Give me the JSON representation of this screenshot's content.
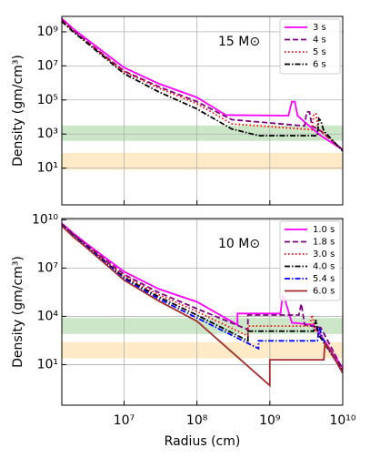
{
  "chart_data": [
    {
      "type": "line",
      "annotation": "15 M⊙",
      "ylabel": "Density (gm/cm³)",
      "log_x": true,
      "log_y": true,
      "grid": true,
      "legend": "upper right",
      "xlim": [
        1400000.0,
        10000000000.0
      ],
      "ylim": [
        0.07,
        8000000000.0
      ],
      "yticks": [
        {
          "value": 10,
          "label": "10¹"
        },
        {
          "value": 1000,
          "label": "10³"
        },
        {
          "value": 100000,
          "label": "10⁵"
        },
        {
          "value": 10000000,
          "label": "10⁷"
        },
        {
          "value": 1000000000,
          "label": "10⁹"
        }
      ],
      "bands": [
        {
          "range": [
            400,
            3200
          ],
          "color": "#b9dfb4"
        },
        {
          "range": [
            8,
            80
          ],
          "color": "#fde3b4"
        }
      ],
      "series": [
        {
          "name": "3 s",
          "color": "#ff00ff",
          "dash": "solid",
          "x": [
            1400000.0,
            2000000.0,
            3000000.0,
            10000000.0,
            30000000.0,
            100000000.0,
            250000000.0,
            1800000000.0,
            2000000000.0,
            2200000000.0,
            2400000000.0,
            3000000000.0,
            5000000000.0,
            10000000000.0
          ],
          "values": [
            6000000000.0,
            1500000000.0,
            400000000.0,
            8000000.0,
            900000.0,
            140000.0,
            13000.0,
            12000.0,
            80000.0,
            80000.0,
            12000.0,
            5000.0,
            800.0,
            120.0
          ]
        },
        {
          "name": "4 s",
          "color": "#800080",
          "dash": "dashed",
          "x": [
            1400000.0,
            2000000.0,
            3000000.0,
            10000000.0,
            30000000.0,
            100000000.0,
            300000000.0,
            3000000000.0,
            3200000000.0,
            3500000000.0,
            3800000000.0,
            5000000000.0,
            10000000000.0
          ],
          "values": [
            5000000000.0,
            1200000000.0,
            300000000.0,
            5000000.0,
            600000.0,
            80000.0,
            7000.0,
            3000.0,
            20000.0,
            20000.0,
            3000.0,
            1500.0,
            120.0
          ]
        },
        {
          "name": "5 s",
          "color": "#ff0000",
          "dash": "dotted",
          "x": [
            1400000.0,
            2000000.0,
            3000000.0,
            10000000.0,
            30000000.0,
            100000000.0,
            300000000.0,
            3800000000.0,
            4000000000.0,
            4300000000.0,
            4600000000.0,
            6000000000.0,
            10000000000.0
          ],
          "values": [
            4500000000.0,
            1100000000.0,
            280000000.0,
            4500000.0,
            500000.0,
            60000.0,
            4000.0,
            1800.0,
            15000.0,
            15000.0,
            2000.0,
            800.0,
            110.0
          ]
        },
        {
          "name": "6 s",
          "color": "#000000",
          "dash": "dashdot",
          "x": [
            1400000.0,
            2000000.0,
            3000000.0,
            10000000.0,
            30000000.0,
            100000000.0,
            300000000.0,
            700000000.0,
            4500000000.0,
            4700000000.0,
            5000000000.0,
            5500000000.0,
            10000000000.0
          ],
          "values": [
            4000000000.0,
            1000000000.0,
            250000000.0,
            3500000.0,
            300000.0,
            30000.0,
            2000.0,
            800.0,
            800.0,
            8000.0,
            6000.0,
            1500.0,
            100.0
          ]
        }
      ]
    },
    {
      "type": "line",
      "annotation": "10 M⊙",
      "ylabel": "Density (gm/cm³)",
      "xlabel": "Radius (cm)",
      "log_x": true,
      "log_y": true,
      "grid": true,
      "legend": "upper right",
      "xlim": [
        1400000.0,
        10000000000.0
      ],
      "ylim": [
        0.03,
        12000000000.0
      ],
      "xticks": [
        {
          "value": 10000000,
          "label": "10⁷"
        },
        {
          "value": 100000000,
          "label": "10⁸"
        },
        {
          "value": 1000000000,
          "label": "10⁹"
        },
        {
          "value": 10000000000,
          "label": "10¹⁰"
        }
      ],
      "yticks": [
        {
          "value": 10,
          "label": "10¹"
        },
        {
          "value": 10000,
          "label": "10⁴"
        },
        {
          "value": 10000000,
          "label": "10⁷"
        },
        {
          "value": 10000000000,
          "label": "10¹⁰"
        }
      ],
      "bands": [
        {
          "range": [
            800,
            8000
          ],
          "color": "#b9dfb4"
        },
        {
          "range": [
            25,
            250
          ],
          "color": "#fde3b4"
        }
      ],
      "series": [
        {
          "name": "1.0 s",
          "color": "#ff00ff",
          "dash": "solid",
          "x": [
            1400000.0,
            2000000.0,
            3000000.0,
            10000000.0,
            30000000.0,
            100000000.0,
            360000000.0,
            360000000.0,
            1400000000.0,
            1500000000.0,
            1600000000.0,
            2000000000.0,
            4000000000.0,
            10000000000.0
          ],
          "values": [
            6000000000.0,
            1500000000.0,
            350000000.0,
            6000000.0,
            500000.0,
            80000.0,
            3000.0,
            15000.0,
            15000.0,
            200000.0,
            120000.0,
            4000.0,
            3000.0,
            6
          ]
        },
        {
          "name": "1.8 s",
          "color": "#800080",
          "dash": "dashed",
          "x": [
            1400000.0,
            2000000.0,
            3000000.0,
            10000000.0,
            30000000.0,
            100000000.0,
            500000000.0,
            500000000.0,
            2500000000.0,
            2700000000.0,
            3000000000.0,
            5000000000.0,
            10000000000.0
          ],
          "values": [
            5500000000.0,
            1300000000.0,
            300000000.0,
            4000000.0,
            300000.0,
            30000.0,
            1500.0,
            12000.0,
            12000.0,
            60000.0,
            3000.0,
            2000.0,
            5
          ]
        },
        {
          "name": "3.0 s",
          "color": "#ff0000",
          "dash": "dotted",
          "x": [
            1400000.0,
            2000000.0,
            3000000.0,
            10000000.0,
            30000000.0,
            100000000.0,
            500000000.0,
            500000000.0,
            3500000000.0,
            3800000000.0,
            4200000000.0,
            10000000000.0
          ],
          "values": [
            5000000000.0,
            1200000000.0,
            270000000.0,
            3200000.0,
            220000.0,
            20000.0,
            600.0,
            2500.0,
            2500.0,
            12000.0,
            1500.0,
            4
          ]
        },
        {
          "name": "4.0 s",
          "color": "#000000",
          "dash": "dashdot",
          "x": [
            1400000.0,
            2000000.0,
            3000000.0,
            10000000.0,
            30000000.0,
            100000000.0,
            500000000.0,
            500000000.0,
            4000000000.0,
            4300000000.0,
            4600000000.0,
            10000000000.0
          ],
          "values": [
            4800000000.0,
            1100000000.0,
            250000000.0,
            2600000.0,
            160000.0,
            12000.0,
            300.0,
            1200.0,
            1200.0,
            6000.0,
            800.0,
            4
          ]
        },
        {
          "name": "5.4 s",
          "color": "#0000ff",
          "dash": "dashdot",
          "x": [
            1400000.0,
            2000000.0,
            3000000.0,
            10000000.0,
            30000000.0,
            100000000.0,
            700000000.0,
            700000000.0,
            4500000000.0,
            4800000000.0,
            5200000000.0,
            10000000000.0
          ],
          "values": [
            4500000000.0,
            1000000000.0,
            230000000.0,
            2200000.0,
            120000.0,
            8000.0,
            100.0,
            300.0,
            300.0,
            2000.0,
            500.0,
            3
          ]
        },
        {
          "name": "6.0 s",
          "color": "#a52a2a",
          "dash": "solid",
          "x": [
            1400000.0,
            2000000.0,
            3000000.0,
            10000000.0,
            30000000.0,
            100000000.0,
            1000000000.0,
            1000000000.0,
            5500000000.0,
            5700000000.0,
            6500000000.0,
            10000000000.0
          ],
          "values": [
            4200000000.0,
            900000000.0,
            200000000.0,
            1800000.0,
            90000.0,
            5000.0,
            0.5,
            20,
            20,
            200,
            100,
            3
          ]
        }
      ]
    }
  ]
}
